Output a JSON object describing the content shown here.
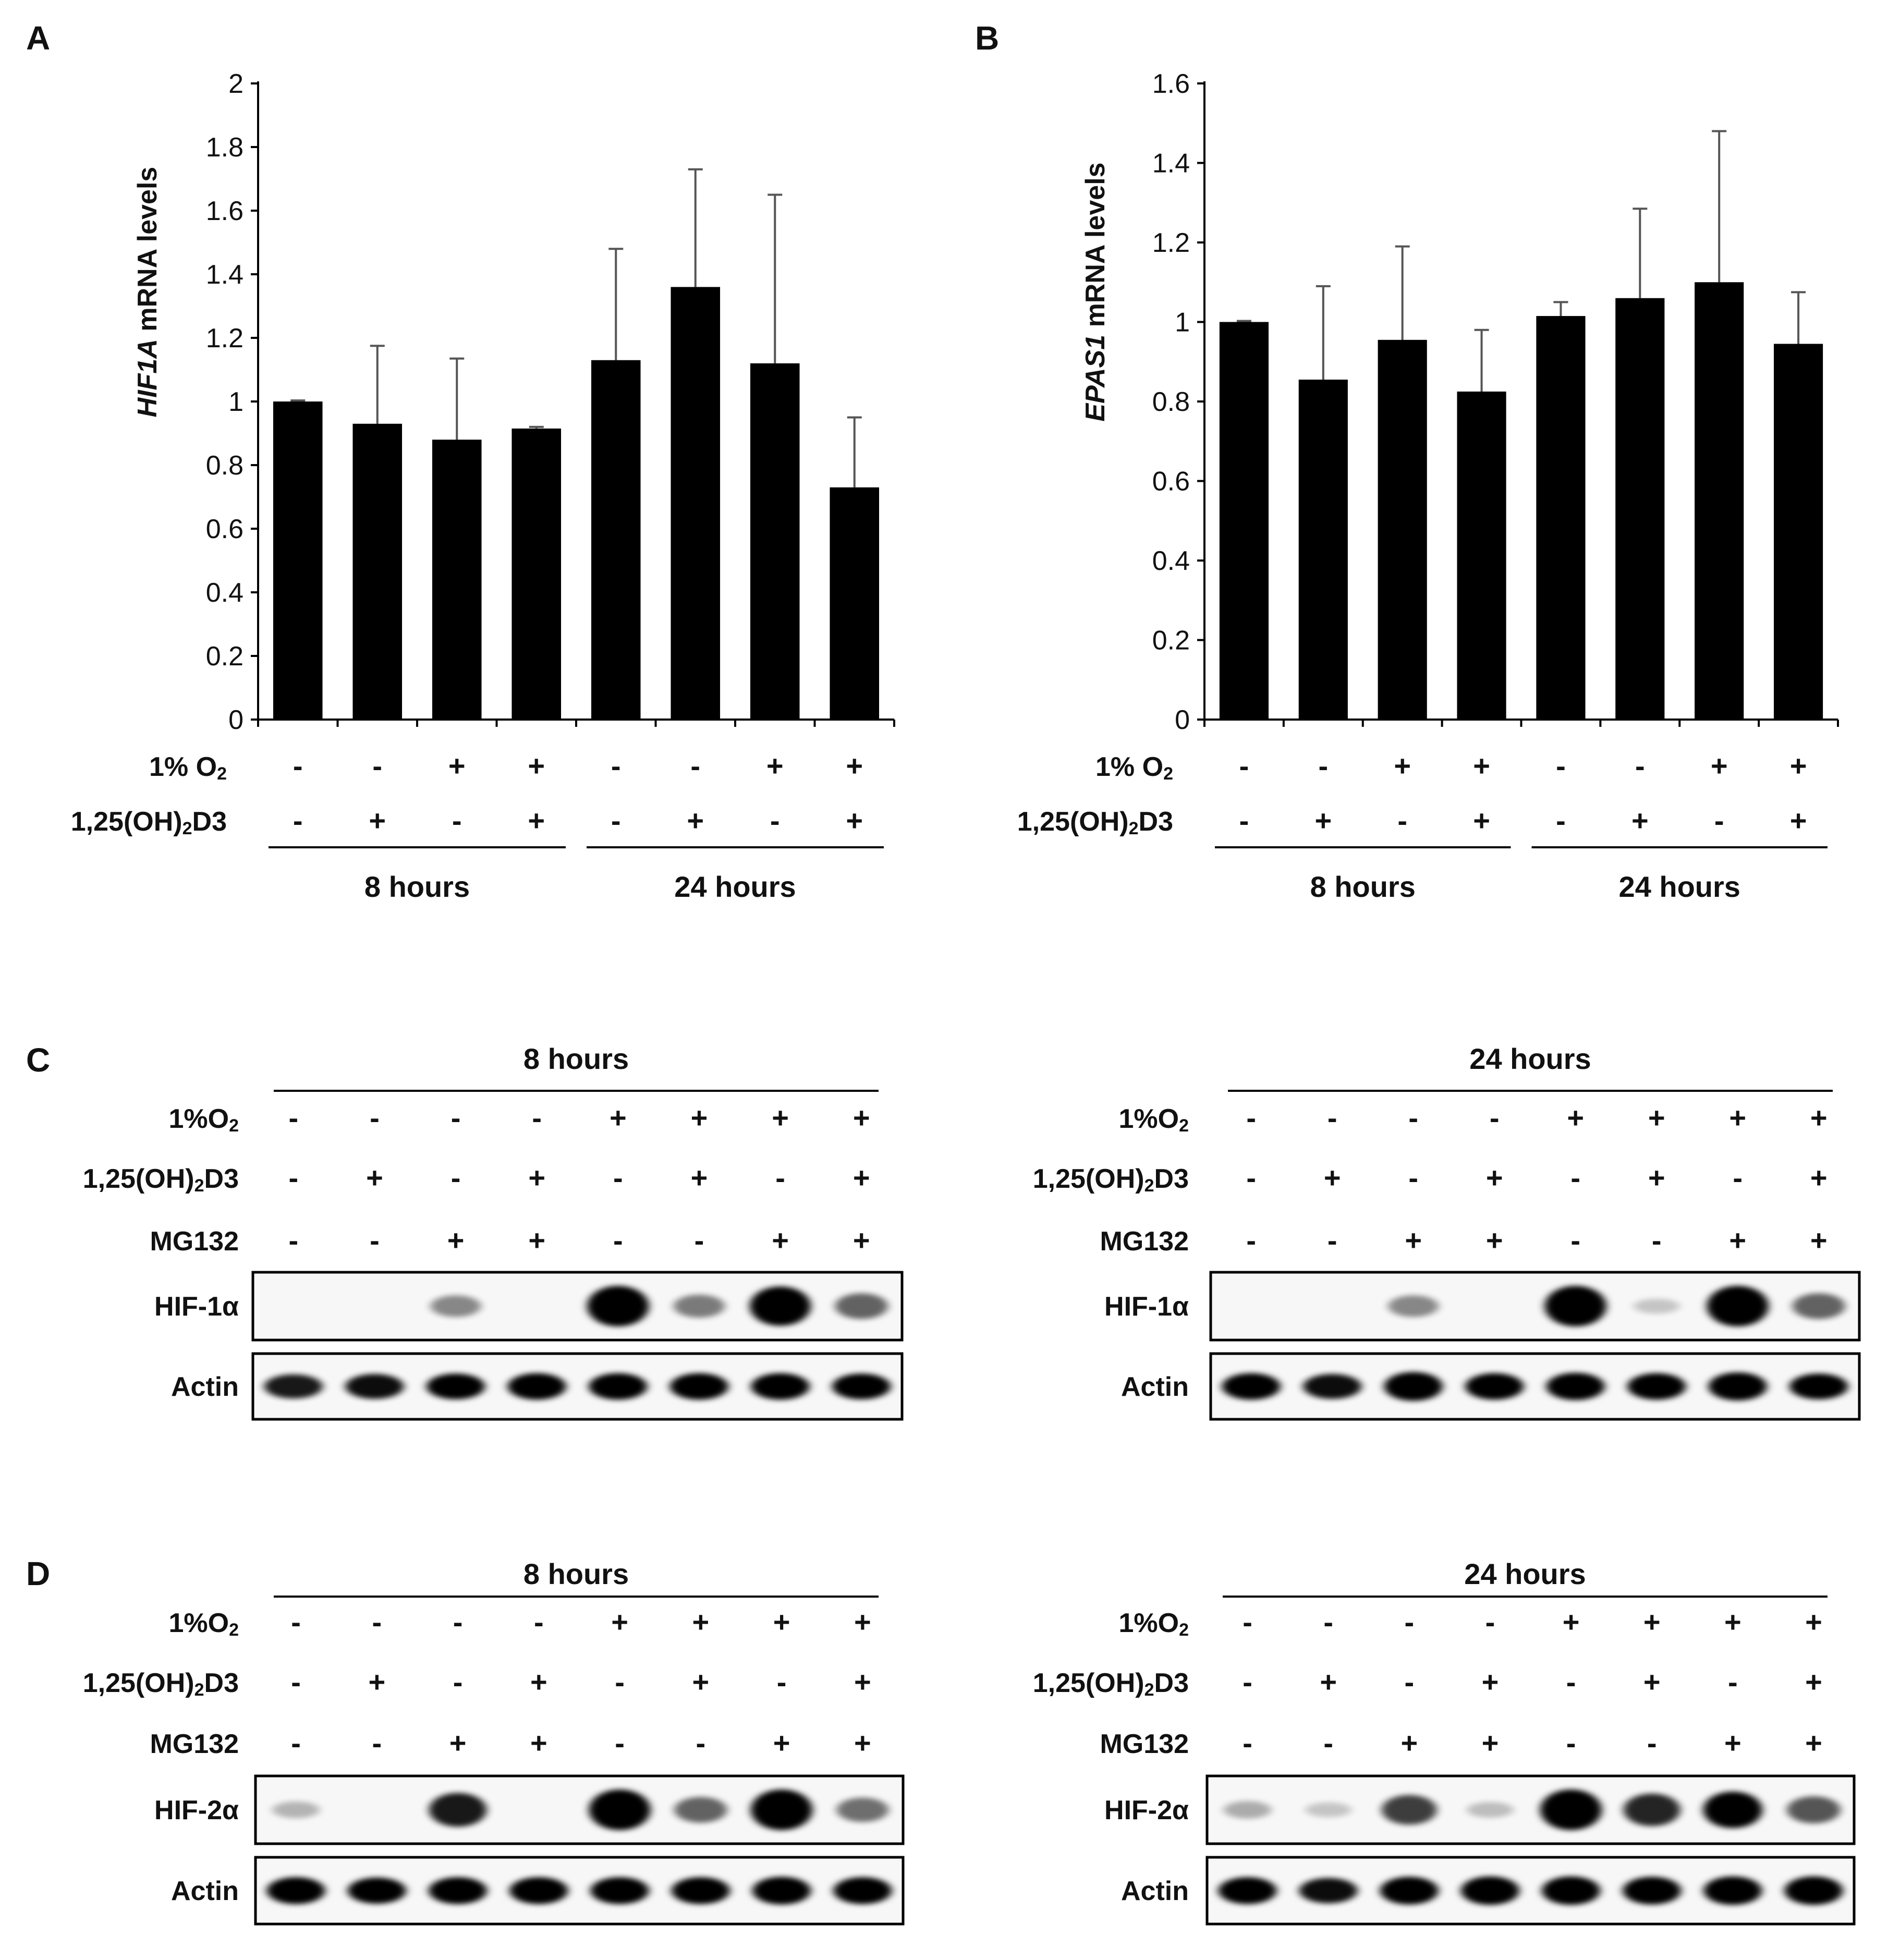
{
  "chart_data": [
    {
      "panel": "A",
      "type": "bar",
      "ylabel_italic": "HIF1A",
      "ylabel_rest": " mRNA levels",
      "ylim": [
        0,
        2
      ],
      "yticks": [
        "0",
        "0.2",
        "0.4",
        "0.6",
        "0.8",
        "1",
        "1.2",
        "1.4",
        "1.6",
        "1.8",
        "2"
      ],
      "series": [
        {
          "name": "HIF1A",
          "values": [
            1.0,
            0.93,
            0.88,
            0.915,
            1.13,
            1.36,
            1.12,
            0.73
          ],
          "errors": [
            0.0,
            0.245,
            0.255,
            0.005,
            0.35,
            0.37,
            0.53,
            0.22
          ]
        }
      ],
      "conditions": [
        {
          "name_main": "1% O",
          "name_sub": "2",
          "name_after": "",
          "signs": [
            "-",
            "-",
            "+",
            "+",
            "-",
            "-",
            "+",
            "+"
          ]
        },
        {
          "name_main": "1,25(OH)",
          "name_sub": "2",
          "name_after": "D3",
          "signs": [
            "-",
            "+",
            "-",
            "+",
            "-",
            "+",
            "-",
            "+"
          ]
        }
      ],
      "groups": [
        "8 hours",
        "24 hours"
      ]
    },
    {
      "panel": "B",
      "type": "bar",
      "ylabel_italic": "EPAS1",
      "ylabel_rest": " mRNA levels",
      "ylim": [
        0,
        1.6
      ],
      "yticks": [
        "0",
        "0.2",
        "0.4",
        "0.6",
        "0.8",
        "1",
        "1.2",
        "1.4",
        "1.6"
      ],
      "series": [
        {
          "name": "EPAS1",
          "values": [
            1.0,
            0.855,
            0.955,
            0.825,
            1.015,
            1.06,
            1.1,
            0.945
          ],
          "errors": [
            0.0,
            0.235,
            0.235,
            0.155,
            0.035,
            0.225,
            0.38,
            0.13
          ]
        }
      ],
      "conditions": [
        {
          "name_main": "1% O",
          "name_sub": "2",
          "name_after": "",
          "signs": [
            "-",
            "-",
            "+",
            "+",
            "-",
            "-",
            "+",
            "+"
          ]
        },
        {
          "name_main": "1,25(OH)",
          "name_sub": "2",
          "name_after": "D3",
          "signs": [
            "-",
            "+",
            "-",
            "+",
            "-",
            "+",
            "-",
            "+"
          ]
        }
      ],
      "groups": [
        "8 hours",
        "24 hours"
      ]
    }
  ],
  "blots": [
    {
      "panel": "C",
      "target": "HIF-1α",
      "loading": "Actin",
      "sections": [
        {
          "title": "8 hours",
          "conditions": [
            {
              "name_main": "1%O",
              "name_sub": "2",
              "name_after": "",
              "signs": [
                "-",
                "-",
                "-",
                "-",
                "+",
                "+",
                "+",
                "+"
              ]
            },
            {
              "name_main": "1,25(OH)",
              "name_sub": "2",
              "name_after": "D3",
              "signs": [
                "-",
                "+",
                "-",
                "+",
                "-",
                "+",
                "-",
                "+"
              ]
            },
            {
              "name_main": "MG132",
              "name_sub": "",
              "name_after": "",
              "signs": [
                "-",
                "-",
                "+",
                "+",
                "-",
                "-",
                "+",
                "+"
              ]
            }
          ],
          "target_intensity": [
            0.0,
            0.0,
            0.3,
            0.0,
            1.0,
            0.35,
            0.95,
            0.45
          ],
          "actin_intensity": [
            0.7,
            0.75,
            0.8,
            0.85,
            0.85,
            0.85,
            0.85,
            0.8
          ]
        },
        {
          "title": "24 hours",
          "conditions": [
            {
              "name_main": "1%O",
              "name_sub": "2",
              "name_after": "",
              "signs": [
                "-",
                "-",
                "-",
                "-",
                "+",
                "+",
                "+",
                "+"
              ]
            },
            {
              "name_main": "1,25(OH)",
              "name_sub": "2",
              "name_after": "D3",
              "signs": [
                "-",
                "+",
                "-",
                "+",
                "-",
                "+",
                "-",
                "+"
              ]
            },
            {
              "name_main": "MG132",
              "name_sub": "",
              "name_after": "",
              "signs": [
                "-",
                "-",
                "+",
                "+",
                "-",
                "-",
                "+",
                "+"
              ]
            }
          ],
          "target_intensity": [
            0.0,
            0.0,
            0.3,
            0.0,
            1.0,
            0.05,
            1.0,
            0.45
          ],
          "actin_intensity": [
            0.85,
            0.75,
            1.0,
            0.85,
            0.9,
            0.85,
            0.95,
            0.8
          ]
        }
      ]
    },
    {
      "panel": "D",
      "target": "HIF-2α",
      "loading": "Actin",
      "sections": [
        {
          "title": "8 hours",
          "conditions": [
            {
              "name_main": "1%O",
              "name_sub": "2",
              "name_after": "",
              "signs": [
                "-",
                "-",
                "-",
                "-",
                "+",
                "+",
                "+",
                "+"
              ]
            },
            {
              "name_main": "1,25(OH)",
              "name_sub": "2",
              "name_after": "D3",
              "signs": [
                "-",
                "+",
                "-",
                "+",
                "-",
                "+",
                "-",
                "+"
              ]
            },
            {
              "name_main": "MG132",
              "name_sub": "",
              "name_after": "",
              "signs": [
                "-",
                "-",
                "+",
                "+",
                "-",
                "-",
                "+",
                "+"
              ]
            }
          ],
          "target_intensity": [
            0.12,
            0.0,
            0.75,
            0.0,
            1.0,
            0.45,
            1.0,
            0.4
          ],
          "actin_intensity": [
            0.85,
            0.8,
            0.85,
            0.85,
            0.85,
            0.85,
            0.9,
            0.85
          ]
        },
        {
          "title": "24 hours",
          "conditions": [
            {
              "name_main": "1%O",
              "name_sub": "2",
              "name_after": "",
              "signs": [
                "-",
                "-",
                "-",
                "-",
                "+",
                "+",
                "+",
                "+"
              ]
            },
            {
              "name_main": "1,25(OH)",
              "name_sub": "2",
              "name_after": "D3",
              "signs": [
                "-",
                "+",
                "-",
                "+",
                "-",
                "+",
                "-",
                "+"
              ]
            },
            {
              "name_main": "MG132",
              "name_sub": "",
              "name_after": "",
              "signs": [
                "-",
                "-",
                "+",
                "+",
                "-",
                "-",
                "+",
                "+"
              ]
            }
          ],
          "target_intensity": [
            0.15,
            0.05,
            0.6,
            0.08,
            1.0,
            0.7,
            0.85,
            0.5
          ],
          "actin_intensity": [
            0.85,
            0.75,
            0.9,
            0.95,
            0.95,
            0.9,
            0.95,
            0.95
          ]
        }
      ]
    }
  ],
  "colors": {
    "bar": "#000000",
    "axis": "#000000",
    "error": "#555555",
    "blot_bg": "#f7f7f7",
    "band": "#000000"
  }
}
